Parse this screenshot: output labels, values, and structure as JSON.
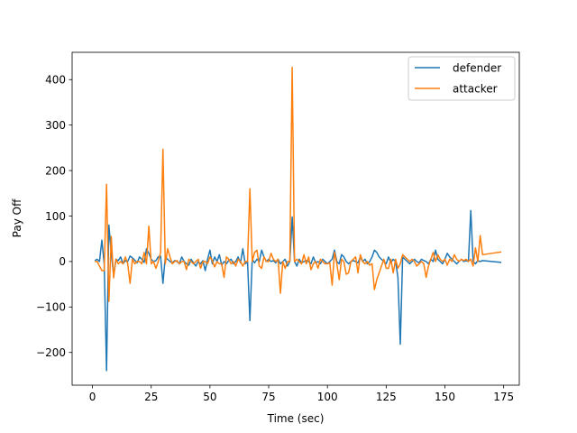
{
  "chart_data": {
    "type": "line",
    "title": "",
    "xlabel": "Time (sec)",
    "ylabel": "Pay Off",
    "xlim": [
      -8.65,
      181.65
    ],
    "ylim": [
      -272,
      460
    ],
    "xticks": [
      0,
      25,
      50,
      75,
      100,
      125,
      150,
      175
    ],
    "yticks": [
      -200,
      -100,
      0,
      100,
      200,
      300,
      400
    ],
    "xtick_labels": [
      "0",
      "25",
      "50",
      "75",
      "100",
      "125",
      "150",
      "175"
    ],
    "ytick_labels": [
      "−200",
      "−100",
      "0",
      "100",
      "200",
      "300",
      "400"
    ],
    "grid": false,
    "legend_position": "top-right",
    "series": [
      {
        "name": "defender",
        "color": "#1f77b4",
        "points": [
          [
            1,
            2
          ],
          [
            2,
            5
          ],
          [
            3,
            0
          ],
          [
            4,
            47
          ],
          [
            5,
            -5
          ],
          [
            6,
            -240
          ],
          [
            7,
            80
          ],
          [
            8,
            20
          ],
          [
            9,
            -30
          ],
          [
            10,
            5
          ],
          [
            11,
            2
          ],
          [
            12,
            10
          ],
          [
            13,
            -5
          ],
          [
            14,
            2
          ],
          [
            15,
            0
          ],
          [
            16,
            12
          ],
          [
            17,
            8
          ],
          [
            18,
            3
          ],
          [
            19,
            -3
          ],
          [
            20,
            10
          ],
          [
            21,
            5
          ],
          [
            22,
            -2
          ],
          [
            23,
            28
          ],
          [
            24,
            18
          ],
          [
            25,
            5
          ],
          [
            26,
            0
          ],
          [
            27,
            2
          ],
          [
            28,
            10
          ],
          [
            29,
            12
          ],
          [
            30,
            -48
          ],
          [
            31,
            10
          ],
          [
            32,
            5
          ],
          [
            33,
            0
          ],
          [
            34,
            -3
          ],
          [
            35,
            2
          ],
          [
            36,
            0
          ],
          [
            37,
            -5
          ],
          [
            38,
            10
          ],
          [
            39,
            0
          ],
          [
            40,
            -5
          ],
          [
            41,
            -8
          ],
          [
            42,
            5
          ],
          [
            43,
            -3
          ],
          [
            44,
            -10
          ],
          [
            45,
            0
          ],
          [
            46,
            -5
          ],
          [
            47,
            2
          ],
          [
            48,
            -20
          ],
          [
            49,
            5
          ],
          [
            50,
            25
          ],
          [
            51,
            -5
          ],
          [
            52,
            10
          ],
          [
            53,
            0
          ],
          [
            54,
            15
          ],
          [
            55,
            -8
          ],
          [
            56,
            0
          ],
          [
            57,
            -5
          ],
          [
            58,
            2
          ],
          [
            59,
            5
          ],
          [
            60,
            -5
          ],
          [
            61,
            0
          ],
          [
            62,
            10
          ],
          [
            63,
            -3
          ],
          [
            64,
            28
          ],
          [
            65,
            -5
          ],
          [
            66,
            0
          ],
          [
            67,
            -130
          ],
          [
            68,
            5
          ],
          [
            69,
            -3
          ],
          [
            70,
            5
          ],
          [
            71,
            0
          ],
          [
            72,
            25
          ],
          [
            73,
            10
          ],
          [
            74,
            0
          ],
          [
            75,
            5
          ],
          [
            76,
            0
          ],
          [
            77,
            2
          ],
          [
            78,
            -3
          ],
          [
            79,
            5
          ],
          [
            80,
            -5
          ],
          [
            81,
            0
          ],
          [
            82,
            5
          ],
          [
            83,
            -10
          ],
          [
            84,
            0
          ],
          [
            85,
            98
          ],
          [
            86,
            0
          ],
          [
            87,
            -10
          ],
          [
            88,
            5
          ],
          [
            89,
            -3
          ],
          [
            90,
            0
          ],
          [
            91,
            2
          ],
          [
            92,
            0
          ],
          [
            93,
            -5
          ],
          [
            94,
            10
          ],
          [
            95,
            -3
          ],
          [
            96,
            0
          ],
          [
            97,
            -5
          ],
          [
            98,
            5
          ],
          [
            99,
            0
          ],
          [
            100,
            -5
          ],
          [
            101,
            0
          ],
          [
            102,
            5
          ],
          [
            103,
            25
          ],
          [
            104,
            0
          ],
          [
            105,
            -5
          ],
          [
            106,
            15
          ],
          [
            107,
            10
          ],
          [
            108,
            0
          ],
          [
            109,
            -5
          ],
          [
            110,
            0
          ],
          [
            111,
            2
          ],
          [
            112,
            0
          ],
          [
            113,
            -3
          ],
          [
            114,
            10
          ],
          [
            115,
            0
          ],
          [
            116,
            5
          ],
          [
            117,
            -5
          ],
          [
            118,
            0
          ],
          [
            119,
            10
          ],
          [
            120,
            25
          ],
          [
            121,
            20
          ],
          [
            122,
            10
          ],
          [
            123,
            5
          ],
          [
            124,
            0
          ],
          [
            125,
            -5
          ],
          [
            126,
            10
          ],
          [
            127,
            -3
          ],
          [
            128,
            5
          ],
          [
            129,
            0
          ],
          [
            130,
            -35
          ],
          [
            131,
            -182
          ],
          [
            132,
            10
          ],
          [
            133,
            5
          ],
          [
            134,
            0
          ],
          [
            135,
            -5
          ],
          [
            136,
            0
          ],
          [
            137,
            5
          ],
          [
            138,
            0
          ],
          [
            139,
            -3
          ],
          [
            140,
            5
          ],
          [
            141,
            2
          ],
          [
            142,
            0
          ],
          [
            143,
            -5
          ],
          [
            144,
            5
          ],
          [
            145,
            0
          ],
          [
            146,
            25
          ],
          [
            147,
            5
          ],
          [
            148,
            0
          ],
          [
            149,
            -5
          ],
          [
            150,
            5
          ],
          [
            151,
            18
          ],
          [
            152,
            10
          ],
          [
            153,
            5
          ],
          [
            154,
            0
          ],
          [
            155,
            -5
          ],
          [
            156,
            0
          ],
          [
            157,
            5
          ],
          [
            158,
            0
          ],
          [
            159,
            2
          ],
          [
            160,
            0
          ],
          [
            161,
            112
          ],
          [
            162,
            0
          ],
          [
            163,
            -5
          ],
          [
            164,
            2
          ],
          [
            165,
            0
          ],
          [
            166,
            2
          ],
          [
            168,
            1
          ],
          [
            170,
            0
          ],
          [
            174,
            -2
          ]
        ]
      },
      {
        "name": "attacker",
        "color": "#ff7f0e",
        "points": [
          [
            1,
            0
          ],
          [
            2,
            0
          ],
          [
            3,
            -10
          ],
          [
            4,
            -20
          ],
          [
            5,
            -20
          ],
          [
            6,
            170
          ],
          [
            7,
            -88
          ],
          [
            8,
            55
          ],
          [
            9,
            -36
          ],
          [
            10,
            5
          ],
          [
            11,
            -5
          ],
          [
            12,
            0
          ],
          [
            13,
            -5
          ],
          [
            14,
            10
          ],
          [
            15,
            -5
          ],
          [
            16,
            -48
          ],
          [
            17,
            5
          ],
          [
            18,
            -5
          ],
          [
            19,
            0
          ],
          [
            20,
            0
          ],
          [
            21,
            -5
          ],
          [
            22,
            20
          ],
          [
            23,
            -5
          ],
          [
            24,
            78
          ],
          [
            25,
            -5
          ],
          [
            26,
            0
          ],
          [
            27,
            -15
          ],
          [
            28,
            0
          ],
          [
            29,
            20
          ],
          [
            30,
            247
          ],
          [
            31,
            -5
          ],
          [
            32,
            28
          ],
          [
            33,
            10
          ],
          [
            34,
            -5
          ],
          [
            35,
            0
          ],
          [
            36,
            2
          ],
          [
            37,
            -5
          ],
          [
            38,
            0
          ],
          [
            39,
            0
          ],
          [
            40,
            -18
          ],
          [
            41,
            5
          ],
          [
            42,
            0
          ],
          [
            43,
            -5
          ],
          [
            44,
            0
          ],
          [
            45,
            5
          ],
          [
            46,
            -15
          ],
          [
            47,
            0
          ],
          [
            48,
            0
          ],
          [
            49,
            -5
          ],
          [
            50,
            10
          ],
          [
            51,
            2
          ],
          [
            52,
            -12
          ],
          [
            53,
            0
          ],
          [
            54,
            -5
          ],
          [
            55,
            -5
          ],
          [
            56,
            -35
          ],
          [
            57,
            10
          ],
          [
            58,
            5
          ],
          [
            59,
            -5
          ],
          [
            60,
            0
          ],
          [
            61,
            -10
          ],
          [
            62,
            5
          ],
          [
            63,
            0
          ],
          [
            64,
            -10
          ],
          [
            65,
            0
          ],
          [
            66,
            0
          ],
          [
            67,
            160
          ],
          [
            68,
            0
          ],
          [
            69,
            20
          ],
          [
            70,
            25
          ],
          [
            71,
            -10
          ],
          [
            72,
            -15
          ],
          [
            73,
            10
          ],
          [
            74,
            0
          ],
          [
            75,
            0
          ],
          [
            76,
            18
          ],
          [
            77,
            5
          ],
          [
            78,
            0
          ],
          [
            79,
            5
          ],
          [
            80,
            -70
          ],
          [
            81,
            0
          ],
          [
            82,
            -15
          ],
          [
            83,
            0
          ],
          [
            84,
            0
          ],
          [
            85,
            427
          ],
          [
            86,
            0
          ],
          [
            87,
            5
          ],
          [
            88,
            0
          ],
          [
            89,
            -5
          ],
          [
            90,
            15
          ],
          [
            91,
            -5
          ],
          [
            92,
            10
          ],
          [
            93,
            -18
          ],
          [
            94,
            -5
          ],
          [
            95,
            0
          ],
          [
            96,
            -15
          ],
          [
            97,
            5
          ],
          [
            98,
            0
          ],
          [
            99,
            -5
          ],
          [
            100,
            -5
          ],
          [
            101,
            -3
          ],
          [
            102,
            -52
          ],
          [
            103,
            20
          ],
          [
            104,
            -5
          ],
          [
            105,
            -40
          ],
          [
            106,
            5
          ],
          [
            107,
            0
          ],
          [
            108,
            -28
          ],
          [
            109,
            -25
          ],
          [
            110,
            0
          ],
          [
            111,
            5
          ],
          [
            112,
            10
          ],
          [
            113,
            -25
          ],
          [
            114,
            15
          ],
          [
            115,
            0
          ],
          [
            116,
            -5
          ],
          [
            117,
            0
          ],
          [
            118,
            -8
          ],
          [
            119,
            -5
          ],
          [
            120,
            -62
          ],
          [
            121,
            -40
          ],
          [
            122,
            -25
          ],
          [
            123,
            -10
          ],
          [
            124,
            5
          ],
          [
            125,
            -15
          ],
          [
            126,
            -15
          ],
          [
            127,
            5
          ],
          [
            128,
            -25
          ],
          [
            129,
            5
          ],
          [
            130,
            -15
          ],
          [
            131,
            -5
          ],
          [
            132,
            15
          ],
          [
            133,
            10
          ],
          [
            134,
            5
          ],
          [
            135,
            0
          ],
          [
            136,
            5
          ],
          [
            137,
            0
          ],
          [
            138,
            -10
          ],
          [
            139,
            -5
          ],
          [
            140,
            0
          ],
          [
            141,
            -5
          ],
          [
            142,
            -35
          ],
          [
            143,
            -10
          ],
          [
            144,
            5
          ],
          [
            145,
            20
          ],
          [
            146,
            0
          ],
          [
            147,
            15
          ],
          [
            148,
            5
          ],
          [
            149,
            0
          ],
          [
            150,
            5
          ],
          [
            151,
            -8
          ],
          [
            152,
            5
          ],
          [
            153,
            0
          ],
          [
            154,
            15
          ],
          [
            155,
            5
          ],
          [
            156,
            0
          ],
          [
            157,
            5
          ],
          [
            158,
            2
          ],
          [
            159,
            5
          ],
          [
            160,
            0
          ],
          [
            161,
            5
          ],
          [
            162,
            -10
          ],
          [
            163,
            30
          ],
          [
            164,
            0
          ],
          [
            165,
            57
          ],
          [
            166,
            15
          ],
          [
            170,
            18
          ],
          [
            174,
            21
          ]
        ]
      }
    ]
  }
}
